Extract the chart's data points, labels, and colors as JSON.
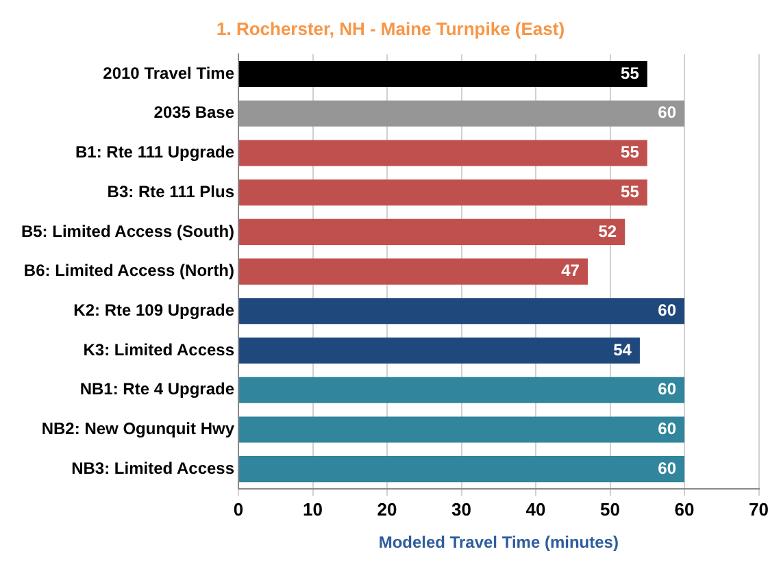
{
  "chart_data": {
    "type": "bar",
    "orientation": "horizontal",
    "title": "1. Rocherster, NH - Maine Turnpike (East)",
    "xlabel": "Modeled Travel Time (minutes)",
    "categories": [
      "2010 Travel Time",
      "2035 Base",
      "B1: Rte 111 Upgrade",
      "B3: Rte 111 Plus",
      "B5: Limited Access (South)",
      "B6: Limited Access (North)",
      "K2: Rte 109 Upgrade",
      "K3: Limited Access",
      "NB1: Rte 4 Upgrade",
      "NB2: New Ogunquit Hwy",
      "NB3: Limited Access"
    ],
    "values": [
      55,
      60,
      55,
      55,
      52,
      47,
      60,
      54,
      60,
      60,
      60
    ],
    "colors": [
      "#000000",
      "#969696",
      "#c0504d",
      "#c0504d",
      "#c0504d",
      "#c0504d",
      "#1f497d",
      "#1f497d",
      "#31859c",
      "#31859c",
      "#31859c"
    ],
    "xlim": [
      0,
      70
    ],
    "xticks": [
      0,
      10,
      20,
      30,
      40,
      50,
      60,
      70
    ],
    "grid": "x",
    "data_labels": true,
    "legend": false
  }
}
